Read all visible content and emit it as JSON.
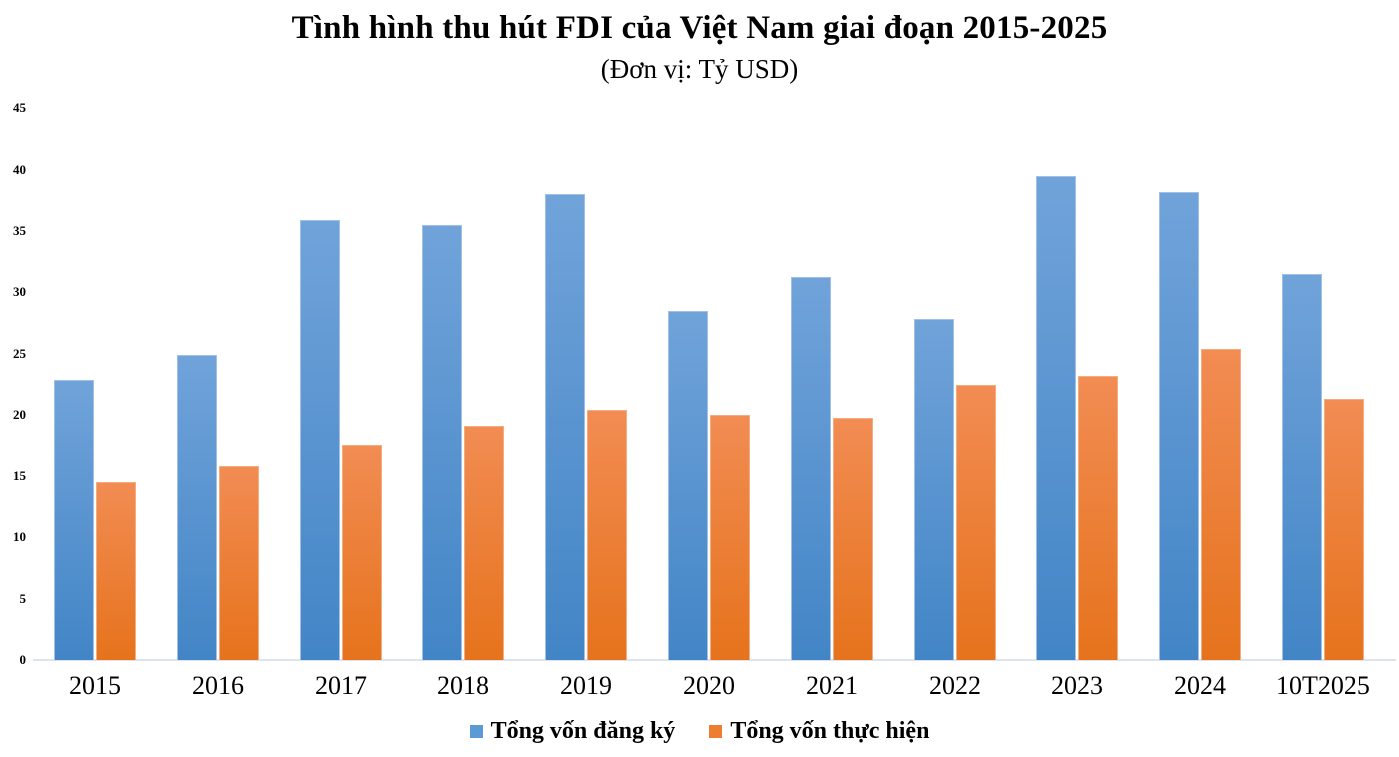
{
  "title": "Tình hình thu hút FDI của Việt Nam giai đoạn 2015-2025",
  "subtitle": "(Đơn vị: Tỷ USD)",
  "chart_data": {
    "type": "bar",
    "title": "Tình hình thu hút FDI của Việt Nam giai đoạn 2015-2025",
    "subtitle": "(Đơn vị: Tỷ USD)",
    "unit": "Tỷ USD",
    "categories": [
      "2015",
      "2016",
      "2017",
      "2018",
      "2019",
      "2020",
      "2021",
      "2022",
      "2023",
      "2024",
      "10T2025"
    ],
    "series": [
      {
        "name": "Tổng vốn đăng ký",
        "color": "#5b9bd5",
        "gradient_top": "#71a3da",
        "gradient_bottom": "#4285c6",
        "values": [
          22.8,
          24.9,
          35.9,
          35.5,
          38.0,
          28.5,
          31.2,
          27.8,
          39.5,
          38.2,
          31.5
        ]
      },
      {
        "name": "Tổng vốn thực hiện",
        "color": "#ed7d31",
        "gradient_top": "#f28c53",
        "gradient_bottom": "#e6731c",
        "values": [
          14.5,
          15.8,
          17.5,
          19.1,
          20.4,
          20.0,
          19.7,
          22.4,
          23.2,
          25.4,
          21.3
        ]
      }
    ],
    "xlabel": "",
    "ylabel": "",
    "ylim": [
      0,
      45
    ],
    "yticks": [
      0,
      5,
      10,
      15,
      20,
      25,
      30,
      35,
      40,
      45
    ],
    "grid": false,
    "legend_position": "bottom"
  }
}
